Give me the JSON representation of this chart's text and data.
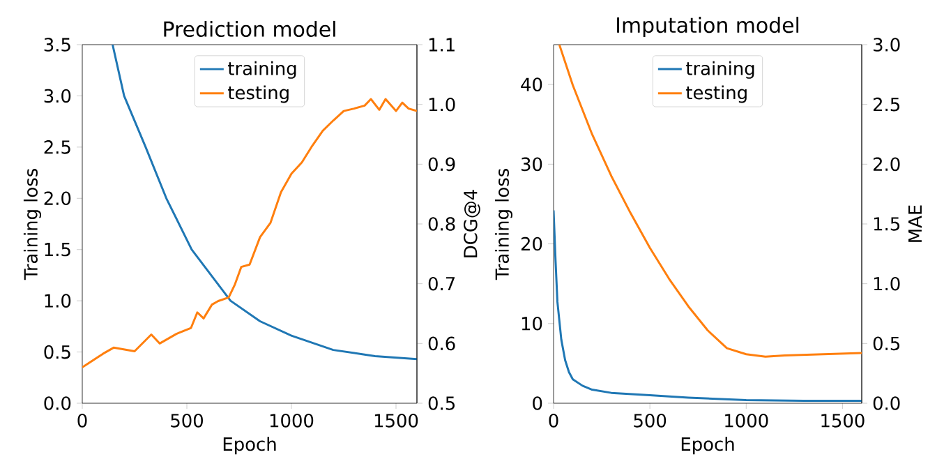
{
  "chart_data": [
    {
      "type": "line",
      "title": "Prediction model",
      "xlabel": "Epoch",
      "ylabel": "Training loss",
      "y2label": "DCG@4",
      "legend": "top",
      "xlim": [
        0,
        1600
      ],
      "xticks": [
        0,
        500,
        1000,
        1500
      ],
      "ylim": [
        0,
        3.5
      ],
      "yticks": [
        {
          "value": 0,
          "label": "0.0"
        },
        0.5,
        {
          "value": 1,
          "label": "1.0"
        },
        1.5,
        {
          "value": 2,
          "label": "2.0"
        },
        2.5,
        {
          "value": 3,
          "label": "3.0"
        },
        3.5
      ],
      "y2lim": [
        0.5,
        1.1
      ],
      "y2ticks": [
        0.5,
        0.6,
        0.7,
        0.8,
        0.9,
        {
          "value": 1,
          "label": "1.0"
        },
        1.1
      ],
      "series": [
        {
          "name": "training",
          "color": "#1f77b4",
          "x": [
            145,
            200,
            303,
            402,
            523,
            709,
            850,
            1000,
            1200,
            1400,
            1600
          ],
          "values": [
            3.5,
            3.0,
            2.5,
            2.0,
            1.5,
            1.0,
            0.8,
            0.66,
            0.52,
            0.46,
            0.43
          ]
        },
        {
          "name": "testing",
          "color": "#ff7f0e",
          "axis": "y2",
          "x": [
            0,
            100,
            150,
            250,
            330,
            370,
            450,
            520,
            550,
            580,
            620,
            650,
            700,
            730,
            760,
            800,
            850,
            900,
            950,
            1000,
            1050,
            1100,
            1150,
            1200,
            1250,
            1300,
            1350,
            1380,
            1420,
            1450,
            1500,
            1530,
            1560,
            1600
          ],
          "values": [
            0.56,
            0.583,
            0.593,
            0.587,
            0.615,
            0.6,
            0.616,
            0.626,
            0.652,
            0.642,
            0.665,
            0.671,
            0.677,
            0.699,
            0.728,
            0.732,
            0.778,
            0.802,
            0.853,
            0.884,
            0.903,
            0.931,
            0.956,
            0.973,
            0.989,
            0.993,
            0.998,
            1.009,
            0.991,
            1.009,
            0.989,
            1.003,
            0.993,
            0.989
          ]
        }
      ]
    },
    {
      "type": "line",
      "title": "Imputation model",
      "xlabel": "Epoch",
      "ylabel": "Training loss",
      "y2label": "MAE",
      "legend": "top",
      "xlim": [
        0,
        1600
      ],
      "xticks": [
        0,
        500,
        1000,
        1500
      ],
      "ylim": [
        0,
        45
      ],
      "yticks": [
        0,
        10,
        20,
        30,
        40
      ],
      "y2lim": [
        0,
        3
      ],
      "y2ticks": [
        {
          "value": 0,
          "label": "0.0"
        },
        0.5,
        {
          "value": 1,
          "label": "1.0"
        },
        1.5,
        {
          "value": 2,
          "label": "2.0"
        },
        2.5,
        {
          "value": 3,
          "label": "3.0"
        }
      ],
      "series": [
        {
          "name": "training",
          "color": "#1f77b4",
          "x": [
            0,
            10,
            20,
            40,
            60,
            80,
            100,
            150,
            200,
            300,
            500,
            700,
            1000,
            1300,
            1600
          ],
          "values": [
            24.2,
            18,
            12.7,
            8.0,
            5.4,
            3.9,
            3.0,
            2.2,
            1.7,
            1.3,
            1.0,
            0.7,
            0.4,
            0.3,
            0.3
          ]
        },
        {
          "name": "testing",
          "color": "#ff7f0e",
          "axis": "y2",
          "x": [
            30,
            100,
            200,
            300,
            400,
            500,
            600,
            700,
            800,
            900,
            1000,
            1100,
            1200,
            1400,
            1600
          ],
          "values": [
            3.0,
            2.66,
            2.25,
            1.9,
            1.59,
            1.3,
            1.04,
            0.81,
            0.61,
            0.46,
            0.41,
            0.39,
            0.4,
            0.41,
            0.42
          ]
        }
      ]
    }
  ]
}
